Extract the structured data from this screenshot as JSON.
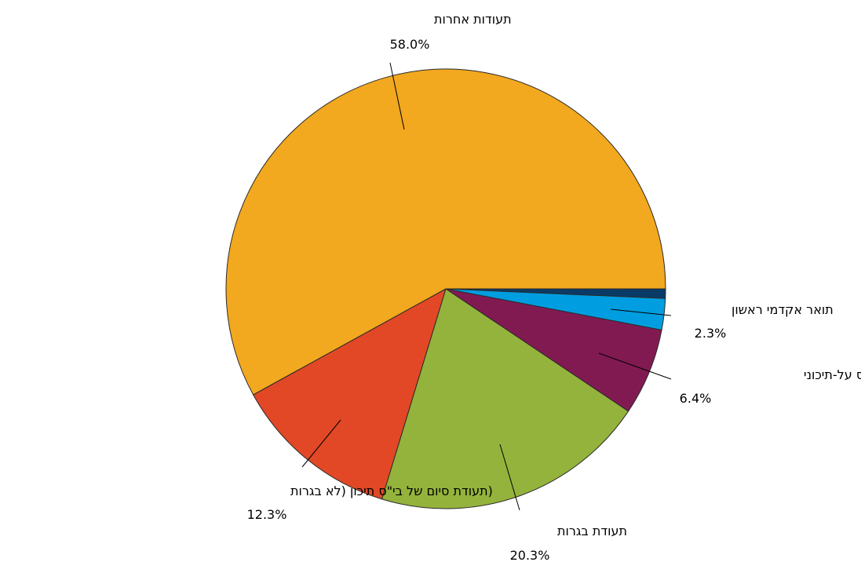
{
  "chart_data": {
    "type": "pie",
    "title": "",
    "start_angle_deg": 0,
    "direction": "clockwise",
    "slices": [
      {
        "label": "",
        "value": 0.7,
        "value_label": "",
        "color": "#0a3a66"
      },
      {
        "label": "תואר אקדמי ראשון",
        "value": 2.3,
        "value_label": "2.3%",
        "color": "#009ee0"
      },
      {
        "label": "תעודה של בי\"ס על-תיכוני",
        "value": 6.4,
        "value_label": "6.4%",
        "color": "#821a52"
      },
      {
        "label": "תעודת בגרות",
        "value": 20.3,
        "value_label": "20.3%",
        "color": "#94b33c"
      },
      {
        "label": "(תעודת סיום של בי\"ס תיכון (לא בגרות",
        "value": 12.3,
        "value_label": "12.3%",
        "color": "#e24826"
      },
      {
        "label": "תעודות אחרות",
        "value": 58.0,
        "value_label": "58.0%",
        "color": "#f2a81f"
      }
    ]
  }
}
